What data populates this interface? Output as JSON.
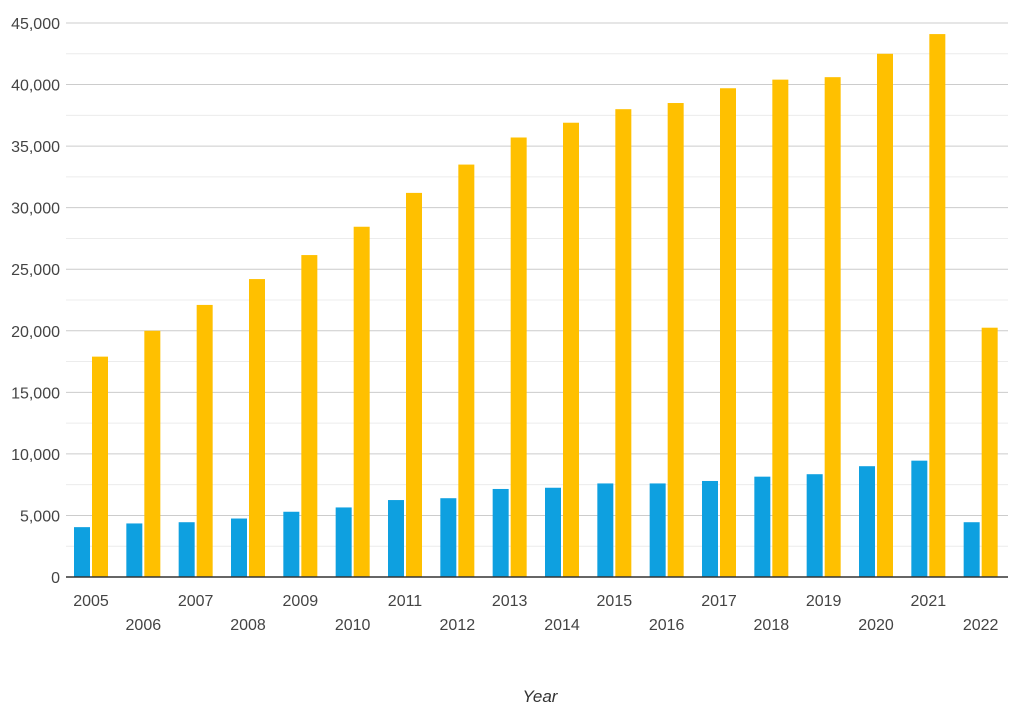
{
  "chart_data": {
    "type": "bar",
    "categories": [
      "2005",
      "2006",
      "2007",
      "2008",
      "2009",
      "2010",
      "2011",
      "2012",
      "2013",
      "2014",
      "2015",
      "2016",
      "2017",
      "2018",
      "2019",
      "2020",
      "2021",
      "2022"
    ],
    "series": [
      {
        "color": "#0ea0e0",
        "values": [
          4050,
          4350,
          4450,
          4750,
          5300,
          5650,
          6250,
          6400,
          7150,
          7250,
          7600,
          7600,
          7800,
          8150,
          8350,
          9000,
          9450,
          4450
        ]
      },
      {
        "color": "#ffc000",
        "values": [
          17900,
          20000,
          22100,
          24200,
          26150,
          28450,
          31200,
          33500,
          35700,
          36900,
          38000,
          38500,
          39700,
          40400,
          40600,
          42500,
          44100,
          20250
        ]
      }
    ],
    "xlabel": "Year",
    "ylabel": "",
    "ylim": [
      0,
      45000
    ],
    "yticks": [
      0,
      5000,
      10000,
      15000,
      20000,
      25000,
      30000,
      35000,
      40000,
      45000
    ],
    "ytick_labels": [
      "0",
      "5,000",
      "10,000",
      "15,000",
      "20,000",
      "25,000",
      "30,000",
      "35,000",
      "40,000",
      "45,000"
    ],
    "grid": true,
    "legend": "none"
  }
}
